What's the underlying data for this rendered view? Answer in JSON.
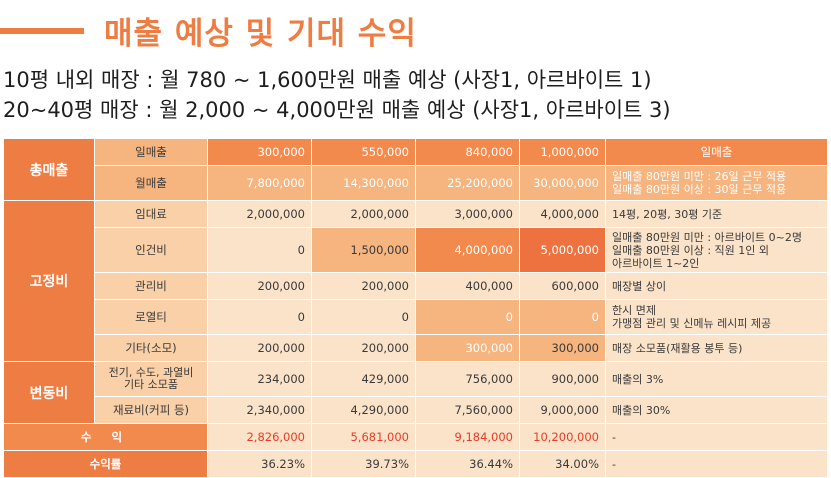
{
  "title": "매출 예상 및 기대 수익",
  "summary": [
    "10평 내외 매장 : 월 780 ~ 1,600만원 매출 예상 (사장1, 아르바이트 1)",
    "20~40평 매장 : 월 2,000 ~ 4,000만원 매출 예상 (사장1, 아르바이트 3)"
  ],
  "table": {
    "groups": {
      "revenue": "총매출",
      "fixed": "고정비",
      "variable": "변동비"
    },
    "rows": {
      "daily": {
        "label": "일매출",
        "values": [
          "300,000",
          "550,000",
          "840,000",
          "1,000,000"
        ],
        "note": "일매출"
      },
      "monthly": {
        "label": "월매출",
        "values": [
          "7,800,000",
          "14,300,000",
          "25,200,000",
          "30,000,000"
        ],
        "note": "일매출 80만원 미만 : 26일 근무 적용\n일매출 80만원 이상 : 30일 근무 적용"
      },
      "rent": {
        "label": "임대료",
        "values": [
          "2,000,000",
          "2,000,000",
          "3,000,000",
          "4,000,000"
        ],
        "note": "14평, 20평, 30평 기준"
      },
      "labor": {
        "label": "인건비",
        "values": [
          "0",
          "1,500,000",
          "4,000,000",
          "5,000,000"
        ],
        "note": "일매출 80만원 미만 : 아르바이트 0~2명\n일매출 80만원 이상 : 직원 1인 외\n아르바이트 1~2인"
      },
      "mgmt": {
        "label": "관리비",
        "values": [
          "200,000",
          "200,000",
          "400,000",
          "600,000"
        ],
        "note": "매장별 상이"
      },
      "royalty": {
        "label": "로열티",
        "values": [
          "0",
          "0",
          "0",
          "0"
        ],
        "note": "한시 면제\n가맹점 관리 및 신메뉴 레시피 제공"
      },
      "other": {
        "label": "기타(소모)",
        "values": [
          "200,000",
          "200,000",
          "300,000",
          "300,000"
        ],
        "note": "매장 소모품(재활용 봉투 등)"
      },
      "utilities": {
        "label": "전기, 수도, 과열비\n기타 소모품",
        "values": [
          "234,000",
          "429,000",
          "756,000",
          "900,000"
        ],
        "note": "매출의 3%"
      },
      "material": {
        "label": "재료비(커피 등)",
        "values": [
          "2,340,000",
          "4,290,000",
          "7,560,000",
          "9,000,000"
        ],
        "note": "매출의 30%"
      },
      "profit": {
        "label": "수 익",
        "values": [
          "2,826,000",
          "5,681,000",
          "9,184,000",
          "10,200,000"
        ],
        "note": "-"
      },
      "rate": {
        "label": "수익률",
        "values": [
          "36.23%",
          "39.73%",
          "36.44%",
          "34.00%"
        ],
        "note": "-"
      }
    }
  }
}
